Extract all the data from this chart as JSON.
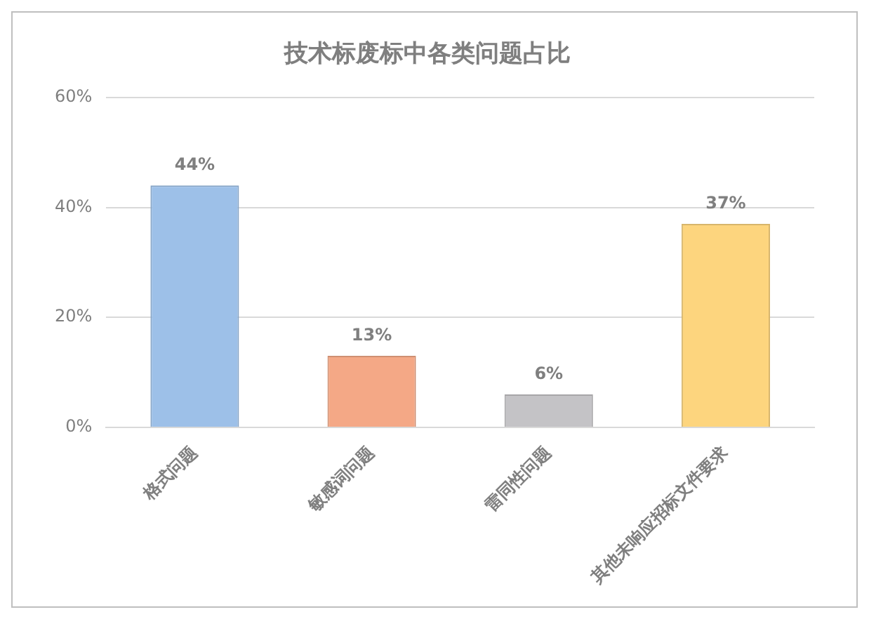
{
  "chart_data": {
    "type": "bar",
    "title": "技术标废标中各类问题占比",
    "categories": [
      "格式问题",
      "敏感词问题",
      "雷同性问题",
      "其他未响应招标文件要求"
    ],
    "values": [
      44,
      13,
      6,
      37
    ],
    "colors": [
      "#9dc0e8",
      "#f4a886",
      "#c4c3c6",
      "#fdd57e"
    ],
    "value_labels": [
      "44%",
      "13%",
      "6%",
      "37%"
    ],
    "ylim": [
      0,
      60
    ],
    "yticks": [
      {
        "value": 0,
        "label": "0%"
      },
      {
        "value": 20,
        "label": "20%"
      },
      {
        "value": 40,
        "label": "40%"
      },
      {
        "value": 60,
        "label": "60%"
      }
    ],
    "grid": "y",
    "legend": false
  }
}
